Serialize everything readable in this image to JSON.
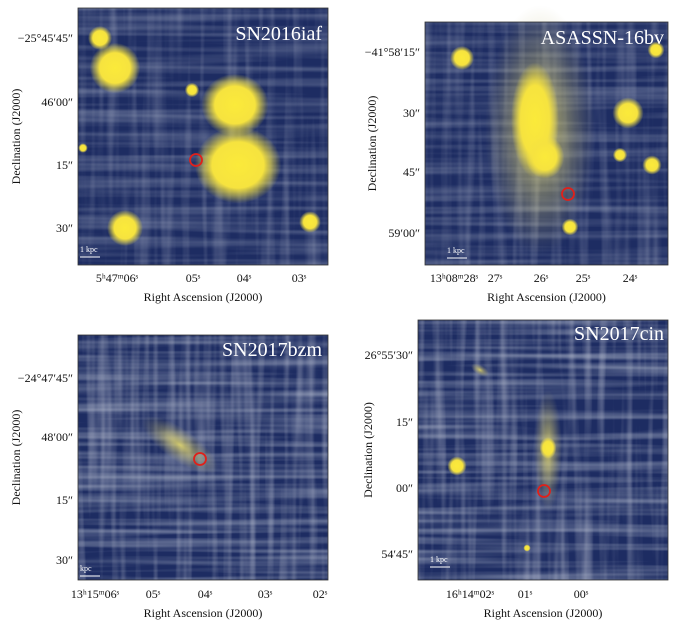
{
  "panels": [
    {
      "title": "SN2016iaf",
      "scale_label": "1 kpc",
      "y_label": "Declination (J2000)",
      "x_label": "Right Ascension (J2000)",
      "y_ticks": [
        "−25°45′45″",
        "46′00″",
        "15″",
        "30″"
      ],
      "x_ticks": [
        "5ʰ47ᵐ06ˢ",
        "05ˢ",
        "04ˢ",
        "03ˢ"
      ]
    },
    {
      "title": "ASASSN-16bv",
      "scale_label": "1 kpc",
      "y_label": "Declination (J2000)",
      "x_label": "Right Ascension (J2000)",
      "y_ticks": [
        "−41°58′15″",
        "30″",
        "45″",
        "59′00″"
      ],
      "x_ticks": [
        "13ʰ08ᵐ28ˢ",
        "27ˢ",
        "26ˢ",
        "25ˢ",
        "24ˢ"
      ]
    },
    {
      "title": "SN2017bzm",
      "scale_label": "kpc",
      "y_label": "Declination (J2000)",
      "x_label": "Right Ascension (J2000)",
      "y_ticks": [
        "−24°47′45″",
        "48′00″",
        "15″",
        "30″"
      ],
      "x_ticks": [
        "13ʰ15ᵐ06ˢ",
        "05ˢ",
        "04ˢ",
        "03ˢ",
        "02ˢ"
      ]
    },
    {
      "title": "SN2017cin",
      "scale_label": "1 kpc",
      "y_label": "Declination (J2000)",
      "x_label": "Right Ascension (J2000)",
      "y_ticks": [
        "26°55′30″",
        "15″",
        "00″",
        "54′45″"
      ],
      "x_ticks": [
        "16ʰ14ᵐ02ˢ",
        "01ˢ",
        "00ˢ"
      ]
    }
  ]
}
